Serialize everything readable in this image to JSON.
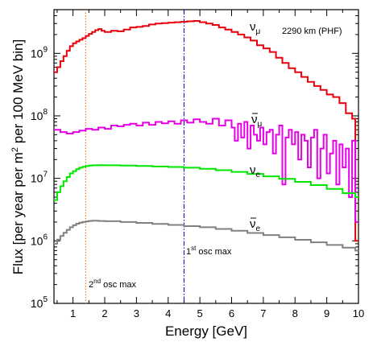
{
  "chart_data": {
    "type": "line",
    "title": "",
    "annotation": "2290 km (PHF)",
    "xlabel": "Energy [GeV]",
    "ylabel": "Flux [per year per m",
    "ylabel_sup": "2",
    "ylabel_tail": " per 100 MeV bin]",
    "xlim": [
      0.4,
      10.0
    ],
    "ylim": [
      100000,
      5000000000
    ],
    "y_scale": "log",
    "x_ticks": [
      1,
      2,
      3,
      4,
      5,
      6,
      7,
      8,
      9,
      10
    ],
    "x_tick_labels": [
      "1",
      "2",
      "3",
      "4",
      "5",
      "6",
      "7",
      "8",
      "9",
      "10"
    ],
    "y_ticks": [
      {
        "base": "10",
        "exp": "5",
        "value": 100000
      },
      {
        "base": "10",
        "exp": "6",
        "value": 1000000
      },
      {
        "base": "10",
        "exp": "7",
        "value": 10000000
      },
      {
        "base": "10",
        "exp": "8",
        "value": 100000000
      },
      {
        "base": "10",
        "exp": "9",
        "value": 1000000000
      }
    ],
    "grid": false,
    "legend": "none",
    "series": [
      {
        "name": "numu",
        "label_main": "ν",
        "label_sub": "μ",
        "bar": false,
        "color": "#e8000b",
        "style": "step",
        "x": [
          0.4,
          0.5,
          0.6,
          0.7,
          0.8,
          0.9,
          1.0,
          1.1,
          1.2,
          1.3,
          1.4,
          1.5,
          1.6,
          1.7,
          1.8,
          1.9,
          2.0,
          2.2,
          2.4,
          2.6,
          2.8,
          3.0,
          3.2,
          3.4,
          3.6,
          3.8,
          4.0,
          4.2,
          4.4,
          4.6,
          4.8,
          5.0,
          5.2,
          5.4,
          5.6,
          5.8,
          6.0,
          6.2,
          6.4,
          6.6,
          6.8,
          7.0,
          7.2,
          7.4,
          7.6,
          7.8,
          8.0,
          8.2,
          8.4,
          8.6,
          8.8,
          9.0,
          9.2,
          9.4,
          9.6,
          9.8,
          9.9
        ],
        "y": [
          500000000,
          600000000,
          750000000,
          900000000,
          1100000000,
          1300000000,
          1450000000,
          1550000000,
          1650000000,
          1750000000,
          1900000000,
          2050000000,
          2200000000,
          2350000000,
          2450000000,
          2300000000,
          2200000000,
          2300000000,
          2250000000,
          2400000000,
          2600000000,
          2650000000,
          2750000000,
          2900000000,
          3000000000,
          3050000000,
          3100000000,
          3150000000,
          3200000000,
          3250000000,
          3300000000,
          3150000000,
          3000000000,
          2850000000,
          2600000000,
          2400000000,
          2200000000,
          2000000000,
          1800000000,
          1600000000,
          1350000000,
          1200000000,
          1050000000,
          850000000,
          700000000,
          580000000,
          500000000,
          420000000,
          350000000,
          300000000,
          260000000,
          220000000,
          200000000,
          160000000,
          110000000,
          90000000,
          1000000
        ]
      },
      {
        "name": "numubar",
        "label_main": "ν",
        "label_sub": "μ",
        "bar": true,
        "color": "#e600e6",
        "style": "step",
        "x": [
          0.4,
          0.6,
          0.8,
          1.0,
          1.2,
          1.4,
          1.6,
          1.8,
          2.0,
          2.2,
          2.4,
          2.6,
          2.8,
          3.0,
          3.2,
          3.4,
          3.6,
          3.8,
          4.0,
          4.2,
          4.4,
          4.6,
          4.8,
          5.0,
          5.2,
          5.4,
          5.6,
          5.8,
          6.0,
          6.1,
          6.2,
          6.3,
          6.4,
          6.5,
          6.6,
          6.7,
          6.8,
          6.9,
          7.0,
          7.1,
          7.2,
          7.3,
          7.4,
          7.5,
          7.6,
          7.7,
          7.8,
          7.9,
          8.0,
          8.1,
          8.2,
          8.3,
          8.4,
          8.5,
          8.6,
          8.7,
          8.8,
          8.9,
          9.0,
          9.1,
          9.2,
          9.3,
          9.4,
          9.5,
          9.6,
          9.7,
          9.8,
          9.9
        ],
        "y": [
          60000000,
          55000000,
          52000000,
          55000000,
          58000000,
          62000000,
          60000000,
          65000000,
          62000000,
          70000000,
          68000000,
          72000000,
          75000000,
          70000000,
          78000000,
          72000000,
          80000000,
          76000000,
          82000000,
          75000000,
          85000000,
          78000000,
          88000000,
          80000000,
          75000000,
          90000000,
          70000000,
          85000000,
          65000000,
          40000000,
          75000000,
          45000000,
          80000000,
          30000000,
          70000000,
          50000000,
          40000000,
          65000000,
          35000000,
          55000000,
          60000000,
          25000000,
          50000000,
          70000000,
          8000000,
          45000000,
          60000000,
          35000000,
          55000000,
          20000000,
          50000000,
          40000000,
          15000000,
          45000000,
          60000000,
          10000000,
          30000000,
          50000000,
          12000000,
          25000000,
          40000000,
          8000000,
          35000000,
          15000000,
          30000000,
          5000000,
          40000000,
          2000000
        ]
      },
      {
        "name": "nue",
        "label_main": "ν",
        "label_sub": "e",
        "bar": false,
        "color": "#00e600",
        "style": "step",
        "x": [
          0.4,
          0.5,
          0.6,
          0.7,
          0.8,
          0.9,
          1.0,
          1.1,
          1.2,
          1.3,
          1.4,
          1.5,
          1.6,
          1.8,
          2.0,
          2.5,
          3.0,
          3.5,
          4.0,
          4.5,
          5.0,
          5.5,
          6.0,
          6.5,
          7.0,
          7.5,
          8.0,
          8.5,
          9.0,
          9.5,
          9.9
        ],
        "y": [
          4500000,
          6000000,
          7500000,
          9000000,
          10500000,
          12000000,
          13000000,
          14000000,
          14800000,
          15300000,
          15700000,
          16000000,
          16200000,
          16300000,
          16200000,
          16000000,
          15800000,
          15500000,
          15200000,
          14800000,
          14200000,
          13500000,
          12700000,
          11800000,
          10800000,
          9800000,
          8800000,
          7800000,
          6800000,
          5800000,
          5000000
        ]
      },
      {
        "name": "nuebar",
        "label_main": "ν",
        "label_sub": "e",
        "bar": true,
        "color": "#808080",
        "style": "step",
        "x": [
          0.4,
          0.5,
          0.6,
          0.7,
          0.8,
          0.9,
          1.0,
          1.1,
          1.2,
          1.3,
          1.4,
          1.5,
          1.6,
          1.8,
          2.0,
          2.5,
          3.0,
          3.5,
          4.0,
          4.5,
          5.0,
          5.5,
          6.0,
          6.5,
          7.0,
          7.5,
          8.0,
          8.5,
          9.0,
          9.5,
          9.9
        ],
        "y": [
          900000,
          1050000,
          1200000,
          1350000,
          1500000,
          1650000,
          1780000,
          1880000,
          1950000,
          2000000,
          2050000,
          2080000,
          2100000,
          2080000,
          2060000,
          2000000,
          1940000,
          1870000,
          1800000,
          1720000,
          1650000,
          1550000,
          1450000,
          1340000,
          1240000,
          1140000,
          1040000,
          950000,
          860000,
          780000,
          700000
        ]
      }
    ],
    "vlines": [
      {
        "name": "2nd-osc-max",
        "x": 1.4,
        "color": "#ff6600",
        "style": "dotted",
        "label_pre": "2",
        "label_sup": "nd",
        "label_post": " osc max"
      },
      {
        "name": "1st-osc-max",
        "x": 4.5,
        "color": "#0000cc",
        "style": "dashdot",
        "label_pre": "1",
        "label_sup": "st",
        "label_post": " osc max"
      }
    ]
  }
}
